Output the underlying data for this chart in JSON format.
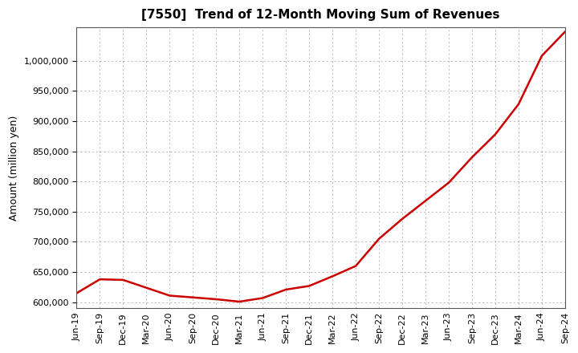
{
  "title": "[7550]  Trend of 12-Month Moving Sum of Revenues",
  "ylabel": "Amount (million yen)",
  "line_color": "#cc0000",
  "background_color": "#ffffff",
  "plot_background": "#ffffff",
  "grid_color": "#999999",
  "x_labels": [
    "Jun-19",
    "Sep-19",
    "Dec-19",
    "Mar-20",
    "Jun-20",
    "Sep-20",
    "Dec-20",
    "Mar-21",
    "Jun-21",
    "Sep-21",
    "Dec-21",
    "Mar-22",
    "Jun-22",
    "Sep-22",
    "Dec-22",
    "Mar-23",
    "Jun-23",
    "Sep-23",
    "Dec-23",
    "Mar-24",
    "Jun-24",
    "Sep-24"
  ],
  "values": [
    615000,
    638000,
    637000,
    624000,
    611000,
    608000,
    605000,
    601000,
    607000,
    621000,
    627000,
    643000,
    660000,
    705000,
    738000,
    768000,
    798000,
    840000,
    878000,
    928000,
    1008000,
    1048000
  ],
  "ylim": [
    590000,
    1055000
  ],
  "yticks": [
    600000,
    650000,
    700000,
    750000,
    800000,
    850000,
    900000,
    950000,
    1000000
  ],
  "title_fontsize": 11,
  "tick_fontsize": 8,
  "label_fontsize": 9
}
